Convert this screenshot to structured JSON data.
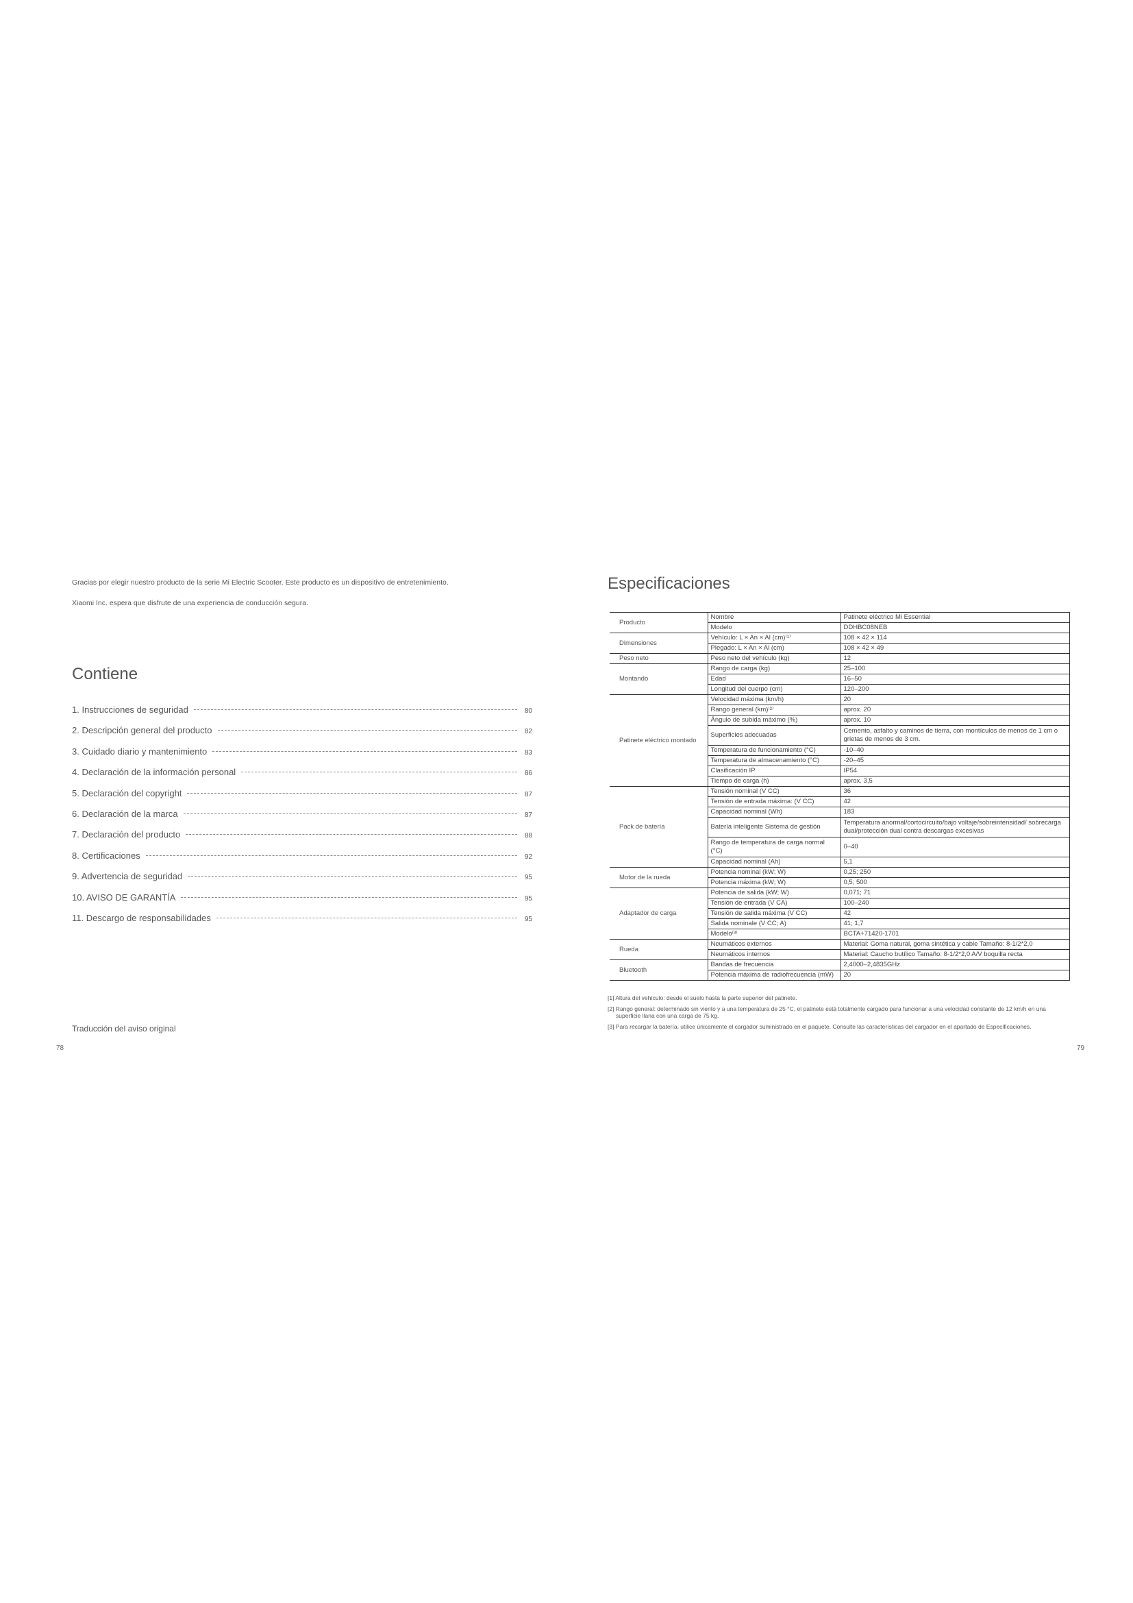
{
  "left_page": {
    "intro": [
      "Gracias por elegir nuestro producto de la serie Mi Electric Scooter. Este producto es un dispositivo de entretenimiento.",
      "Xiaomi Inc. espera que disfrute de una experiencia de conducción segura."
    ],
    "toc_title": "Contiene",
    "toc": [
      {
        "label": "1. Instrucciones de seguridad",
        "page": "80"
      },
      {
        "label": "2. Descripción general del producto",
        "page": "82"
      },
      {
        "label": "3. Cuidado diario y mantenimiento",
        "page": "83"
      },
      {
        "label": "4. Declaración de la información personal",
        "page": "86"
      },
      {
        "label": "5. Declaración del copyright",
        "page": "87"
      },
      {
        "label": "6. Declaración de la marca",
        "page": "87"
      },
      {
        "label": "7. Declaración del producto",
        "page": "88"
      },
      {
        "label": "8. Certificaciones",
        "page": "92"
      },
      {
        "label": "9. Advertencia de seguridad",
        "page": "95"
      },
      {
        "label": "10. AVISO DE GARANTÍA",
        "page": "95"
      },
      {
        "label": "11. Descargo de responsabilidades",
        "page": "95"
      }
    ],
    "footer_note": "Traducción del aviso original",
    "page_number": "78"
  },
  "right_page": {
    "title": "Especificaciones",
    "spec_groups": [
      {
        "group": "Producto",
        "rows": [
          [
            "Nombre",
            "Patinete eléctrico Mi Essential"
          ],
          [
            "Modelo",
            "DDHBC08NEB"
          ]
        ]
      },
      {
        "group": "Dimensiones",
        "rows": [
          [
            "Vehículo: L × An × Al (cm)⁽¹⁾",
            "108 × 42 × 114"
          ],
          [
            "Plegado: L × An × Al (cm)",
            "108 × 42 × 49"
          ]
        ]
      },
      {
        "group": "Peso neto",
        "rows": [
          [
            "Peso neto del vehículo (kg)",
            "12"
          ]
        ]
      },
      {
        "group": "Montando",
        "rows": [
          [
            "Rango de carga (kg)",
            "25–100"
          ],
          [
            "Edad",
            "16–50"
          ],
          [
            "Longitud del cuerpo (cm)",
            "120–200"
          ]
        ]
      },
      {
        "group": "Patinete eléctrico montado",
        "rows": [
          [
            "Velocidad máxima (km/h)",
            "20"
          ],
          [
            "Rango general (km)⁽²⁾",
            "aprox. 20"
          ],
          [
            "Ángulo de subida máximo (%)",
            "aprox. 10"
          ],
          [
            "Superficies adecuadas",
            "Cemento, asfalto y caminos de tierra, con montículos de menos de 1 cm o grietas de menos de 3 cm."
          ],
          [
            "Temperatura de funcionamiento (°C)",
            "-10–40"
          ],
          [
            "Temperatura de almacenamiento (°C)",
            "-20–45"
          ],
          [
            "Clasificación IP",
            "IP54"
          ],
          [
            "Tiempo de carga (h)",
            "aprox. 3,5"
          ]
        ]
      },
      {
        "group": "Pack de batería",
        "rows": [
          [
            "Tensión nominal (V CC)",
            "36"
          ],
          [
            "Tensión de entrada máxima: (V CC)",
            "42"
          ],
          [
            "Capacidad nominal (Wh)",
            "183"
          ],
          [
            "Batería inteligente Sistema de gestión",
            "Temperatura anormal/cortocircuito/bajo voltaje/sobreintensidad/ sobrecarga dual/protección dual contra descargas excesivas"
          ],
          [
            "Rango de temperatura de carga normal (°C)",
            "0–40"
          ],
          [
            "Capacidad nominal (Ah)",
            "5,1"
          ]
        ]
      },
      {
        "group": "Motor de la rueda",
        "rows": [
          [
            "Potencia nominal (kW; W)",
            "0,25; 250"
          ],
          [
            "Potencia máxima (kW; W)",
            "0,5; 500"
          ]
        ]
      },
      {
        "group": "Adaptador de carga",
        "rows": [
          [
            "Potencia de salida (kW; W)",
            "0,071; 71"
          ],
          [
            "Tensión de entrada (V CA)",
            "100–240"
          ],
          [
            "Tensión de salida máxima (V CC)",
            "42"
          ],
          [
            "Salida nominale (V CC; A)",
            "41; 1,7"
          ],
          [
            "Modelo⁽³⁾",
            "BCTA+71420-1701"
          ]
        ]
      },
      {
        "group": "Rueda",
        "rows": [
          [
            "Neumáticos externos",
            "Material: Goma natural, goma sintética y cable Tamaño: 8-1/2*2,0"
          ],
          [
            "Neumáticos internos",
            "Material: Caucho butílico Tamaño: 8-1/2*2,0 A/V boquilla recta"
          ]
        ]
      },
      {
        "group": "Bluetooth",
        "rows": [
          [
            "Bandas de frecuencia",
            "2,4000–2,4835GHz"
          ],
          [
            "Potencia máxima de radiofrecuencia (mW)",
            "20"
          ]
        ]
      }
    ],
    "footnotes": [
      "[1] Altura del vehículo: desde el suelo hasta la parte superior del patinete.",
      "[2] Rango general: determinado sin viento y a una temperatura de 25 °C, el patinete está totalmente cargado para funcionar a una velocidad constante de 12 km/h en una superficie llana con una carga de 75 kg.",
      "[3] Para recargar la batería, utilice únicamente el cargador suministrado en el paquete. Consulte las características del cargador en el apartado de Especificaciones."
    ],
    "page_number": "79"
  }
}
